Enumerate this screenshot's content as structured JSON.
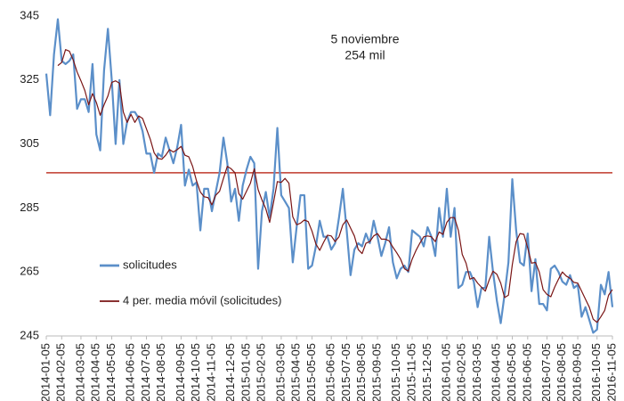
{
  "chart_data": {
    "type": "line",
    "annotation": [
      "5 noviembre",
      "254 mil"
    ],
    "categories": [
      "2014-01-05",
      null,
      null,
      null,
      "2014-02-05",
      null,
      null,
      null,
      null,
      "2014-03-05",
      null,
      null,
      null,
      "2014-04-05",
      null,
      null,
      null,
      "2014-05-05",
      null,
      null,
      null,
      null,
      "2014-06-05",
      null,
      null,
      null,
      "2014-07-05",
      null,
      null,
      null,
      "2014-08-05",
      null,
      null,
      null,
      null,
      "2014-09-05",
      null,
      null,
      null,
      "2014-10-05",
      null,
      null,
      null,
      "2014-11-05",
      null,
      null,
      null,
      null,
      "2014-12-05",
      null,
      null,
      null,
      "2015-01-05",
      null,
      null,
      null,
      "2015-02-05",
      null,
      null,
      null,
      null,
      "2015-03-05",
      null,
      null,
      null,
      "2015-04-05",
      null,
      null,
      null,
      "2015-05-05",
      null,
      null,
      null,
      null,
      "2015-06-05",
      null,
      null,
      null,
      "2015-07-05",
      null,
      null,
      null,
      "2015-08-05",
      null,
      null,
      null,
      "2015-09-05",
      null,
      null,
      null,
      null,
      "2015-10-05",
      null,
      null,
      null,
      "2015-11-05",
      null,
      null,
      null,
      "2015-12-05",
      null,
      null,
      null,
      null,
      "2016-01-05",
      null,
      null,
      null,
      "2016-02-05",
      null,
      null,
      null,
      "2016-03-05",
      null,
      null,
      null,
      null,
      "2016-04-05",
      null,
      null,
      null,
      "2016-05-05",
      null,
      null,
      null,
      "2016-06-05",
      null,
      null,
      null,
      null,
      "2016-07-05",
      null,
      null,
      null,
      "2016-08-05",
      null,
      null,
      null,
      "2016-09-05",
      null,
      null,
      null,
      null,
      "2016-10-05",
      null,
      null,
      null,
      "2016-11-05"
    ],
    "series": [
      {
        "name": "solicitudes",
        "color": "#5b8fc9",
        "width": 2.2,
        "values": [
          327,
          314,
          333,
          344,
          331,
          330,
          331,
          333,
          316,
          319,
          319,
          315,
          330,
          308,
          303,
          328,
          341,
          325,
          305,
          325,
          305,
          312,
          315,
          315,
          313,
          309,
          302,
          302,
          296,
          302,
          301,
          307,
          303,
          299,
          304,
          311,
          292,
          297,
          292,
          293,
          278,
          291,
          291,
          284,
          290,
          296,
          307,
          299,
          287,
          291,
          281,
          292,
          297,
          301,
          299,
          266,
          284,
          290,
          282,
          291,
          310,
          289,
          287,
          285,
          268,
          279,
          289,
          289,
          266,
          267,
          273,
          281,
          276,
          276,
          272,
          274,
          282,
          291,
          278,
          264,
          272,
          274,
          273,
          277,
          274,
          281,
          276,
          270,
          274,
          279,
          268,
          263,
          266,
          267,
          265,
          278,
          277,
          276,
          273,
          279,
          276,
          270,
          285,
          276,
          291,
          276,
          285,
          260,
          261,
          265,
          265,
          262,
          254,
          260,
          260,
          276,
          265,
          256,
          249,
          258,
          268,
          294,
          278,
          268,
          267,
          277,
          259,
          269,
          255,
          255,
          253,
          266,
          267,
          265,
          262,
          261,
          264,
          260,
          261,
          251,
          254,
          250,
          246,
          247,
          261,
          258,
          265,
          254
        ]
      },
      {
        "name": "4 per. media móvil (solicitudes)",
        "color": "#7a1515",
        "width": 1.2,
        "values": [
          null,
          null,
          null,
          329.5,
          330.5,
          334.5,
          334,
          331.25,
          327.5,
          324.75,
          321.75,
          317.25,
          320.75,
          318,
          314,
          317.25,
          320,
          324.25,
          324.75,
          324,
          315,
          311.75,
          314.25,
          311.75,
          313.75,
          313,
          309.75,
          306.5,
          302.25,
          300.5,
          300.25,
          301.5,
          303.25,
          302.5,
          303.25,
          304.25,
          301.5,
          301,
          298,
          293.5,
          290,
          288.5,
          288.25,
          286,
          289,
          290.25,
          294.25,
          298,
          297.25,
          296,
          289.5,
          287.75,
          290.25,
          292.75,
          297.25,
          290.75,
          287.5,
          284.75,
          280.5,
          286.75,
          293.25,
          293,
          294.25,
          292.75,
          282.25,
          279.75,
          280.25,
          281.25,
          280.75,
          277.75,
          273.75,
          271.75,
          274.25,
          276.5,
          276.25,
          274.5,
          276,
          279.75,
          281.25,
          278.75,
          276.25,
          272,
          270.75,
          274,
          274.5,
          276.25,
          277,
          275.25,
          275.25,
          274.75,
          272.75,
          271,
          269,
          266,
          265.25,
          269,
          271.75,
          274,
          276,
          276.25,
          276,
          274.5,
          277.5,
          276.75,
          280.5,
          282,
          282,
          278,
          270.5,
          267.75,
          262.75,
          263.25,
          261.5,
          260.25,
          259,
          262.5,
          265.25,
          264.25,
          261.5,
          257,
          257.75,
          267.25,
          274.5,
          277,
          276.75,
          272.5,
          267.75,
          268,
          265,
          259.5,
          258,
          257.25,
          260.25,
          262.75,
          265,
          263.75,
          263,
          261.75,
          261.5,
          259,
          256.5,
          254,
          250.25,
          249.25,
          251,
          253,
          257.75,
          259.5
        ]
      }
    ],
    "reference_line": {
      "value": 296,
      "color": "#c0392b"
    },
    "ylim": [
      245,
      345
    ],
    "yticks": [
      245,
      265,
      285,
      305,
      325,
      345
    ],
    "grid": false
  }
}
